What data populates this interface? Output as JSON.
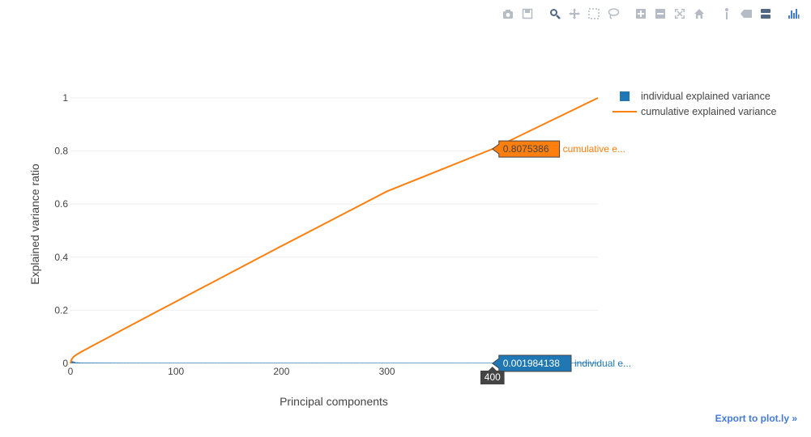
{
  "modebar": {
    "buttons": [
      {
        "name": "camera-icon",
        "group": 0
      },
      {
        "name": "save-icon",
        "group": 0
      },
      {
        "name": "zoom-icon",
        "group": 1
      },
      {
        "name": "pan-icon",
        "group": 1
      },
      {
        "name": "box-select-icon",
        "group": 1
      },
      {
        "name": "lasso-select-icon",
        "group": 1
      },
      {
        "name": "zoom-in-icon",
        "group": 2
      },
      {
        "name": "zoom-out-icon",
        "group": 2
      },
      {
        "name": "autoscale-icon",
        "group": 2
      },
      {
        "name": "reset-axes-icon",
        "group": 2
      },
      {
        "name": "spike-lines-icon",
        "group": 3
      },
      {
        "name": "hover-closest-icon",
        "group": 3
      },
      {
        "name": "hover-compare-icon",
        "group": 3
      },
      {
        "name": "plotly-logo-icon",
        "group": 4
      }
    ]
  },
  "export_label": "Export to plot.ly »",
  "colors": {
    "individual": "#1f77b4",
    "cumulative": "#ff7f0e",
    "grid": "#eeeeee",
    "text": "#444444",
    "axis_hover_bg": "#444444"
  },
  "chart_data": {
    "type": "line",
    "title": "",
    "xlabel": "Principal components",
    "ylabel": "Explained variance ratio",
    "xlim": [
      0,
      500
    ],
    "ylim": [
      0,
      1
    ],
    "x_ticks": [
      0,
      100,
      200,
      300
    ],
    "y_ticks": [
      0,
      0.2,
      0.4,
      0.6,
      0.8,
      1
    ],
    "x_tick_labels": [
      "0",
      "100",
      "200",
      "300"
    ],
    "y_tick_labels": [
      "0",
      "0.2",
      "0.4",
      "0.6",
      "0.8",
      "1"
    ],
    "grid": true,
    "legend_position": "top-right",
    "series": [
      {
        "name": "individual explained variance",
        "kind": "bar",
        "description_points": [
          [
            1,
            0.0145
          ],
          [
            2,
            0.0082
          ],
          [
            5,
            0.004
          ],
          [
            10,
            0.0028
          ],
          [
            50,
            0.0022
          ],
          [
            100,
            0.0021
          ],
          [
            200,
            0.0021
          ],
          [
            300,
            0.00205
          ],
          [
            400,
            0.001984138
          ],
          [
            500,
            0.0019
          ]
        ]
      },
      {
        "name": "cumulative explained variance",
        "kind": "line",
        "points": [
          [
            0,
            0
          ],
          [
            1,
            0.0145
          ],
          [
            3,
            0.025
          ],
          [
            5,
            0.031
          ],
          [
            10,
            0.043
          ],
          [
            50,
            0.128
          ],
          [
            100,
            0.233
          ],
          [
            200,
            0.442
          ],
          [
            300,
            0.648
          ],
          [
            400,
            0.8075386
          ],
          [
            500,
            1.0
          ]
        ]
      }
    ],
    "hover": {
      "x_label": "400",
      "labels": [
        {
          "series": "cumulative explained variance",
          "value": "0.8075386",
          "trace_label": "cumulative e..."
        },
        {
          "series": "individual explained variance",
          "value": "0.001984138",
          "trace_label": "individual e..."
        }
      ]
    }
  }
}
